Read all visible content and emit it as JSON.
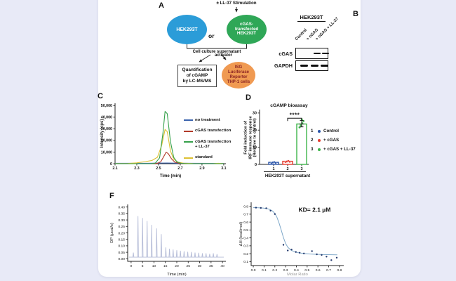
{
  "background": {
    "page_bg": "#e8eaf7",
    "card_bg": "#ffffff"
  },
  "panels": {
    "a": {
      "label": "A",
      "stimulation": "± LL-37 Stimulation",
      "cell1": "HEK293T",
      "or": "or",
      "cell2_lines": [
        "cGAS-",
        "transfected",
        "HEK293T"
      ],
      "supernatant": "Cell culture supernatant",
      "activator": "activator",
      "box_lines": [
        "Quantification",
        "of cGAMP",
        "by LC-MS/MS"
      ],
      "reporter_lines": [
        "ISG",
        "Luciferase",
        "Reporter",
        "THP-1 cells"
      ],
      "colors": {
        "cell1": "#2b9cd8",
        "cell2": "#2fa757",
        "reporter": "#f09a52",
        "reporter_text": "#8a2323"
      }
    },
    "b": {
      "label": "B",
      "header": "HEK293T",
      "lanes": [
        "Control",
        "+ cGAS",
        "+ cGAS + LL-37"
      ],
      "rows": [
        {
          "name": "cGAS",
          "bands": [
            false,
            true,
            true
          ]
        },
        {
          "name": "GAPDH",
          "bands": [
            true,
            true,
            true
          ]
        }
      ]
    },
    "c": {
      "label": "C"
    },
    "d": {
      "label": "D",
      "title": "cGAMP bioassay",
      "group_label": "HEK293T supernatant",
      "ylabel_lines": [
        "Fold induction of",
        "IRF immune response",
        "(Relative to control)"
      ],
      "legend": [
        {
          "num": "1",
          "color": "#2853a8",
          "text": "Control"
        },
        {
          "num": "2",
          "color": "#e43b2e",
          "text": "+ cGAS"
        },
        {
          "num": "3",
          "color": "#3db54a",
          "text": "+ cGAS + LL-37"
        }
      ]
    },
    "f": {
      "label": "F"
    }
  },
  "chart_data": [
    {
      "id": "chromatogram",
      "type": "line",
      "xlabel": "Time (min)",
      "ylabel": "Intensity (cps)",
      "xlim": [
        2.1,
        3.12
      ],
      "ylim": [
        0,
        52000
      ],
      "xticks": [
        [
          2.1,
          "2.1"
        ],
        [
          2.3,
          "2.3"
        ],
        [
          2.5,
          "2.5"
        ],
        [
          2.7,
          "2.7"
        ],
        [
          2.9,
          "2.9"
        ],
        [
          3.1,
          "3.1"
        ]
      ],
      "yticks": [
        [
          0,
          "0"
        ],
        [
          10000,
          "10,000"
        ],
        [
          20000,
          "20,000"
        ],
        [
          30000,
          "30,000"
        ],
        [
          40000,
          "40,000"
        ],
        [
          50000,
          "50,000"
        ]
      ],
      "legend": [
        {
          "color": "#3a62ad",
          "label": "no treatment"
        },
        {
          "color": "#b23a2a",
          "label": "cGAS transfection"
        },
        {
          "color": "#35a04a",
          "label": "cGAS transfection\n+ LL-37"
        },
        {
          "color": "#ddc133",
          "label": "standard"
        }
      ],
      "series": [
        {
          "name": "no treatment",
          "kind": "line",
          "color": "#3a62ad",
          "points": [
            [
              2.1,
              350
            ],
            [
              2.4,
              350
            ],
            [
              2.5,
              500
            ],
            [
              2.58,
              600
            ],
            [
              2.68,
              450
            ],
            [
              2.8,
              350
            ],
            [
              3.1,
              300
            ]
          ]
        },
        {
          "name": "standard",
          "kind": "line",
          "color": "#ddc133",
          "points": [
            [
              2.1,
              100
            ],
            [
              2.22,
              200
            ],
            [
              2.3,
              700
            ],
            [
              2.38,
              1800
            ],
            [
              2.44,
              2800
            ],
            [
              2.49,
              5500
            ],
            [
              2.53,
              16000
            ],
            [
              2.56,
              29500
            ],
            [
              2.58,
              27500
            ],
            [
              2.61,
              11000
            ],
            [
              2.64,
              3800
            ],
            [
              2.68,
              1300
            ],
            [
              2.73,
              450
            ],
            [
              2.82,
              150
            ],
            [
              3.0,
              80
            ],
            [
              3.05,
              350
            ],
            [
              3.1,
              60
            ]
          ]
        },
        {
          "name": "cGAS transfection",
          "kind": "line",
          "color": "#b23a2a",
          "points": [
            [
              2.1,
              0
            ],
            [
              2.44,
              0
            ],
            [
              2.49,
              350
            ],
            [
              2.52,
              1600
            ],
            [
              2.55,
              6500
            ],
            [
              2.57,
              9900
            ],
            [
              2.59,
              8600
            ],
            [
              2.62,
              4200
            ],
            [
              2.65,
              1300
            ],
            [
              2.69,
              350
            ],
            [
              2.74,
              0
            ],
            [
              3.1,
              0
            ]
          ]
        },
        {
          "name": "cGAS transfection + LL-37",
          "kind": "line",
          "color": "#35a04a",
          "points": [
            [
              2.1,
              0
            ],
            [
              2.43,
              0
            ],
            [
              2.47,
              500
            ],
            [
              2.51,
              5000
            ],
            [
              2.54,
              26000
            ],
            [
              2.56,
              45000
            ],
            [
              2.58,
              43000
            ],
            [
              2.61,
              19000
            ],
            [
              2.64,
              5500
            ],
            [
              2.67,
              1400
            ],
            [
              2.71,
              300
            ],
            [
              2.78,
              0
            ],
            [
              3.1,
              0
            ]
          ]
        }
      ]
    },
    {
      "id": "bioassay",
      "type": "bar",
      "title": "cGAMP bioassay",
      "xlim": [
        0,
        3.5
      ],
      "ylim": [
        0,
        32
      ],
      "xticks": [
        [
          1,
          "1"
        ],
        [
          2,
          "2"
        ],
        [
          3,
          "3"
        ]
      ],
      "yticks": [
        [
          0,
          "0"
        ],
        [
          10,
          "10"
        ],
        [
          20,
          "20"
        ],
        [
          30,
          "30"
        ]
      ],
      "categories": [
        "1",
        "2",
        "3"
      ],
      "values": [
        1.2,
        1.8,
        23.6
      ],
      "series": [
        {
          "kind": "bars",
          "x": [
            1,
            2,
            3
          ],
          "values": [
            1.2,
            1.8,
            23.6
          ],
          "colors": [
            "#2853a8",
            "#e43b2e",
            "#3db54a"
          ],
          "bw": 14
        },
        {
          "kind": "points",
          "x": 1,
          "color": "#2853a8",
          "r": 1.5,
          "points": [
            [
              -3,
              0.7
            ],
            [
              -1,
              1.1
            ],
            [
              1,
              1.3
            ],
            [
              3,
              0.9
            ]
          ]
        },
        {
          "kind": "points",
          "x": 2,
          "color": "#e43b2e",
          "r": 1.5,
          "points": [
            [
              -3,
              1.4
            ],
            [
              -1,
              1.7
            ],
            [
              1,
              2.0
            ],
            [
              3,
              1.5
            ]
          ]
        },
        {
          "kind": "points",
          "x": 3,
          "color": "#3db54a",
          "r": 1.6,
          "points": [
            [
              -3,
              21.6
            ],
            [
              -1.2,
              22.8
            ],
            [
              0.8,
              24.0
            ],
            [
              2.6,
              25.3
            ],
            [
              0.2,
              26.2
            ]
          ]
        }
      ],
      "error": {
        "x": 3,
        "mean": 23.6,
        "lo": 21.9,
        "hi": 25.6
      },
      "sig": {
        "x1": 2,
        "x2": 3,
        "y": 27,
        "label": "****"
      }
    },
    {
      "id": "itc_thermogram",
      "type": "spikes",
      "xlabel": "Time (min)",
      "ylabel": "DP (µcal/s)",
      "xlim": [
        -1.5,
        41.5
      ],
      "ylim": [
        -0.02,
        0.42
      ],
      "xticks": [
        [
          0,
          "0"
        ],
        [
          5,
          "5"
        ],
        [
          10,
          "10"
        ],
        [
          15,
          "15"
        ],
        [
          20,
          "20"
        ],
        [
          25,
          "25"
        ],
        [
          30,
          "30"
        ],
        [
          35,
          "35"
        ],
        [
          40,
          "40"
        ]
      ],
      "yticks": [
        [
          0,
          "0.00"
        ],
        [
          0.05,
          "0.05"
        ],
        [
          0.1,
          "0.10"
        ],
        [
          0.15,
          "0.15"
        ],
        [
          0.2,
          "0.20"
        ],
        [
          0.25,
          "0.25"
        ],
        [
          0.3,
          "0.30"
        ],
        [
          0.35,
          "0.35"
        ],
        [
          0.4,
          "0.40"
        ]
      ],
      "series": [
        {
          "kind": "spikes",
          "color": "#b6bdd8",
          "base": 0.012,
          "points": [
            [
              1,
              0.048
            ],
            [
              3,
              0.33
            ],
            [
              5,
              0.315
            ],
            [
              7,
              0.292
            ],
            [
              9,
              0.262
            ],
            [
              11.2,
              0.235
            ],
            [
              13.2,
              0.19
            ],
            [
              15.2,
              0.088
            ],
            [
              16.8,
              0.078
            ],
            [
              18.4,
              0.072
            ],
            [
              20,
              0.066
            ],
            [
              21.6,
              0.062
            ],
            [
              23.2,
              0.058
            ],
            [
              24.8,
              0.054
            ],
            [
              26.4,
              0.052
            ],
            [
              28,
              0.048
            ],
            [
              29.6,
              0.046
            ],
            [
              31.2,
              0.042
            ],
            [
              32.8,
              0.042
            ],
            [
              34.4,
              0.038
            ],
            [
              36,
              0.042
            ],
            [
              37.6,
              0.036
            ]
          ]
        }
      ]
    },
    {
      "id": "itc_isotherm",
      "type": "scatter",
      "xlabel": "Molar Ratio",
      "ylabel": "ΔH (kcal/mol)",
      "annotation": {
        "x": 0.42,
        "y": 0.73,
        "text": "KD= 2.1 µM"
      },
      "xlim": [
        -0.02,
        0.84
      ],
      "ylim": [
        0.05,
        0.85
      ],
      "xticks": [
        [
          0,
          "0.0"
        ],
        [
          0.1,
          "0.1"
        ],
        [
          0.2,
          "0.2"
        ],
        [
          0.3,
          "0.3"
        ],
        [
          0.4,
          "0.4"
        ],
        [
          0.5,
          "0.5"
        ],
        [
          0.6,
          "0.6"
        ],
        [
          0.7,
          "0.7"
        ],
        [
          0.8,
          "0.8"
        ]
      ],
      "yticks": [
        [
          0.1,
          "0.1"
        ],
        [
          0.2,
          "0.2"
        ],
        [
          0.3,
          "0.3"
        ],
        [
          0.4,
          "0.4"
        ],
        [
          0.5,
          "0.5"
        ],
        [
          0.6,
          "0.6"
        ],
        [
          0.7,
          "0.7"
        ],
        [
          0.8,
          "0.8"
        ]
      ],
      "series": [
        {
          "kind": "line",
          "color": "#7fa8c9",
          "w": 1,
          "points": [
            [
              0.0,
              0.783
            ],
            [
              0.05,
              0.781
            ],
            [
              0.09,
              0.778
            ],
            [
              0.13,
              0.77
            ],
            [
              0.16,
              0.755
            ],
            [
              0.18,
              0.738
            ],
            [
              0.2,
              0.71
            ],
            [
              0.22,
              0.66
            ],
            [
              0.24,
              0.585
            ],
            [
              0.26,
              0.495
            ],
            [
              0.28,
              0.405
            ],
            [
              0.3,
              0.33
            ],
            [
              0.32,
              0.282
            ],
            [
              0.35,
              0.245
            ],
            [
              0.38,
              0.226
            ],
            [
              0.42,
              0.212
            ],
            [
              0.47,
              0.202
            ],
            [
              0.53,
              0.196
            ],
            [
              0.6,
              0.191
            ],
            [
              0.68,
              0.188
            ],
            [
              0.78,
              0.186
            ]
          ]
        },
        {
          "kind": "scatter",
          "color": "#253a6e",
          "r": 1.2,
          "points": [
            [
              0.025,
              0.782
            ],
            [
              0.07,
              0.779
            ],
            [
              0.12,
              0.775
            ],
            [
              0.16,
              0.744
            ],
            [
              0.2,
              0.702
            ],
            [
              0.28,
              0.312
            ],
            [
              0.32,
              0.24
            ],
            [
              0.355,
              0.252
            ],
            [
              0.395,
              0.222
            ],
            [
              0.43,
              0.212
            ],
            [
              0.47,
              0.203
            ],
            [
              0.545,
              0.232
            ],
            [
              0.59,
              0.192
            ],
            [
              0.635,
              0.184
            ],
            [
              0.68,
              0.163
            ],
            [
              0.725,
              0.118
            ],
            [
              0.775,
              0.15
            ]
          ]
        }
      ]
    }
  ]
}
